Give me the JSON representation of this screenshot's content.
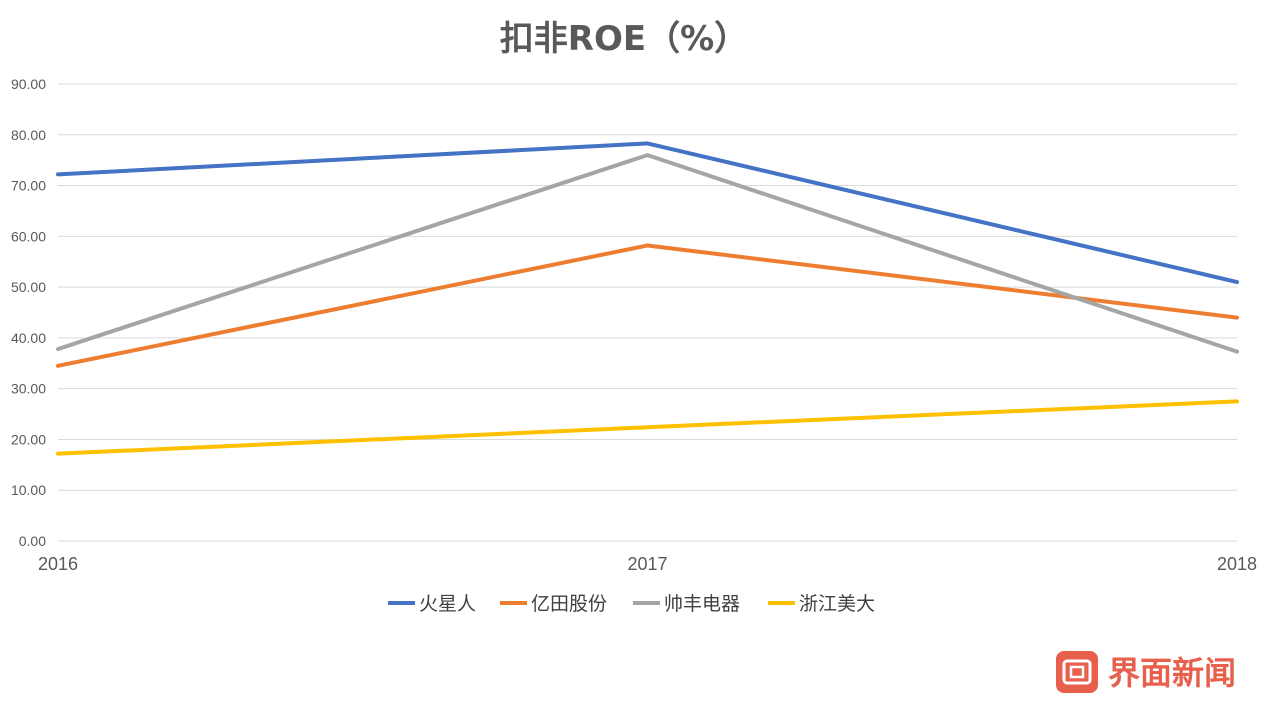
{
  "chart_data": {
    "type": "line",
    "title": "扣非ROE（%）",
    "x": [
      "2016",
      "2017",
      "2018"
    ],
    "yticks": [
      "0.00",
      "10.00",
      "20.00",
      "30.00",
      "40.00",
      "50.00",
      "60.00",
      "70.00",
      "80.00",
      "90.00"
    ],
    "ylim": [
      0,
      90
    ],
    "grid": true,
    "legend_position": "bottom",
    "series": [
      {
        "name": "火星人",
        "color": "#4472c4",
        "values": [
          72.2,
          78.3,
          51.0
        ]
      },
      {
        "name": "亿田股份",
        "color": "#ed7d31",
        "values": [
          34.5,
          58.2,
          44.0
        ]
      },
      {
        "name": "帅丰电器",
        "color": "#a5a5a5",
        "values": [
          37.8,
          76.0,
          37.3
        ]
      },
      {
        "name": "浙江美大",
        "color": "#ffc000",
        "values": [
          17.2,
          22.4,
          27.5
        ]
      }
    ]
  },
  "watermark": {
    "text": "界面新闻",
    "color": "#e8604c",
    "icon": "jiemian-logo-icon"
  }
}
